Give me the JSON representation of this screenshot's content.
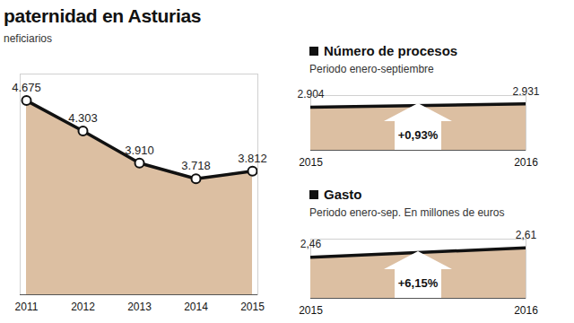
{
  "chart_data": [
    {
      "type": "line",
      "title": "paternidad en Asturias",
      "subtitle": "neficiarios",
      "categories": [
        "2011",
        "2012",
        "2013",
        "2014",
        "2015"
      ],
      "values": [
        4675,
        4303,
        3910,
        3718,
        3812
      ],
      "value_labels": [
        "4.675",
        "4.303",
        "3.910",
        "3.718",
        "3.812"
      ],
      "ylim": [
        2300,
        5000
      ],
      "color": "#dcbfa2",
      "marker": "circle",
      "data_labels": true,
      "tick_labels": "x",
      "grid": false
    },
    {
      "type": "line",
      "title": "Número de procesos",
      "subtitle": "Periodo enero-septiembre",
      "categories": [
        "2015",
        "2016"
      ],
      "values": [
        2904,
        2931
      ],
      "value_labels": [
        "2.904",
        "2.931"
      ],
      "annotation": "+0,93%",
      "ylim": [
        2550,
        3000
      ],
      "color": "#dcbfa2",
      "data_labels": true,
      "tick_labels": "x",
      "grid": false
    },
    {
      "type": "line",
      "title": "Gasto",
      "subtitle": "Periodo enero-sep. En millones de euros",
      "categories": [
        "2015",
        "2016"
      ],
      "values": [
        2.46,
        2.61
      ],
      "value_labels": [
        "2,46",
        "2,61"
      ],
      "annotation": "+6,15%",
      "ylim": [
        1.8,
        2.75
      ],
      "color": "#dcbfa2",
      "data_labels": true,
      "tick_labels": "x",
      "grid": false
    }
  ]
}
